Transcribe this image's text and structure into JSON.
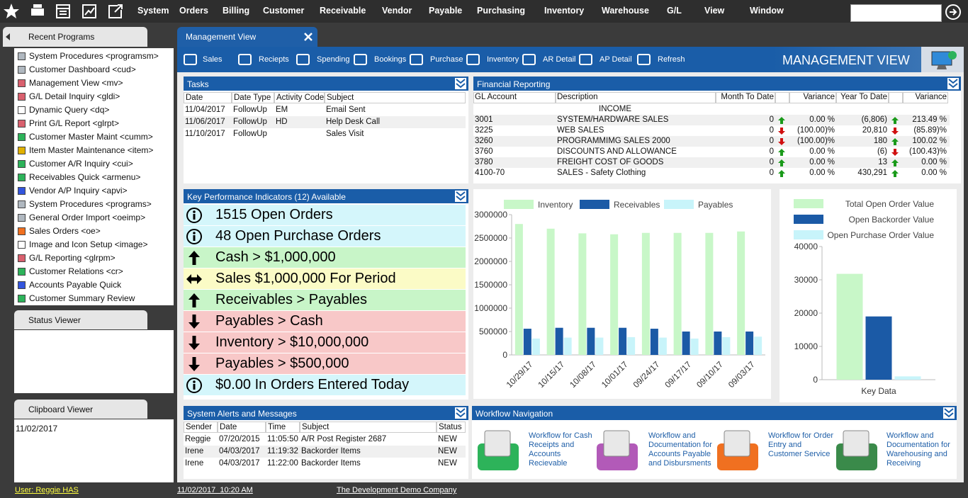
{
  "menu": {
    "items": [
      "System",
      "Orders",
      "Billing",
      "Customer",
      "Receivable",
      "Vendor",
      "Payable",
      "Purchasing",
      "Inventory",
      "Warehouse",
      "G/L",
      "View",
      "Window"
    ]
  },
  "recent_programs": {
    "title": "Recent Programs",
    "items": [
      {
        "label": "System Procedures <programsm>",
        "color": "#b0b8c0"
      },
      {
        "label": "Customer Dashboard <cud>",
        "color": "#b0b8c0"
      },
      {
        "label": "Management View <mv>",
        "color": "#d9606e"
      },
      {
        "label": "G/L Detail Inquiry <gldi>",
        "color": "#d9606e"
      },
      {
        "label": "Dynamic Query <dq>",
        "color": "#ffffff"
      },
      {
        "label": "Print G/L Report <glrpt>",
        "color": "#d9606e"
      },
      {
        "label": "Customer Master Maint <cumm>",
        "color": "#2db35a"
      },
      {
        "label": "Item Master Maintenance <item>",
        "color": "#e0b000"
      },
      {
        "label": "Customer A/R Inquiry <cui>",
        "color": "#2db35a"
      },
      {
        "label": "Receivables Quick <armenu>",
        "color": "#2db35a"
      },
      {
        "label": "Vendor A/P Inquiry <apvi>",
        "color": "#3355dd"
      },
      {
        "label": "System Procedures <programs>",
        "color": "#b0b8c0"
      },
      {
        "label": "General Order Import <oeimp>",
        "color": "#b0b8c0"
      },
      {
        "label": "Sales Orders <oe>",
        "color": "#f07020"
      },
      {
        "label": "Image and Icon Setup <image>",
        "color": "#ffffff"
      },
      {
        "label": "G/L Reporting <glrpm>",
        "color": "#d9606e"
      },
      {
        "label": "Customer Relations <cr>",
        "color": "#2db35a"
      },
      {
        "label": "Accounts Payable Quick",
        "color": "#3355dd"
      },
      {
        "label": "Customer Summary Review",
        "color": "#2db35a"
      }
    ]
  },
  "status_viewer": {
    "title": "Status Viewer"
  },
  "clipboard_viewer": {
    "title": "Clipboard Viewer",
    "content": "11/02/2017"
  },
  "main_tab": {
    "title": "Management View"
  },
  "toolbar": {
    "buttons": [
      "Sales",
      "Reciepts",
      "Spending",
      "Bookings",
      "Purchase",
      "Inventory",
      "AR Detail",
      "AP Detail",
      "Refresh"
    ],
    "banner": "MANAGEMENT VIEW"
  },
  "tasks": {
    "title": "Tasks",
    "columns": [
      "Date",
      "Date Type",
      "Activity Code",
      "Subject"
    ],
    "rows": [
      [
        "11/04/2017",
        "FollowUp",
        "EM",
        "Email Sent"
      ],
      [
        "11/06/2017",
        "FollowUp",
        "HD",
        "Help Desk Call"
      ],
      [
        "11/10/2017",
        "FollowUp",
        null,
        "Sales Visit"
      ]
    ]
  },
  "financial_reporting": {
    "title": "Financial Reporting",
    "columns": [
      "GL Account",
      "Description",
      "Month To Date",
      "Variance",
      "Year To Date",
      "Variance"
    ],
    "section": "INCOME",
    "rows": [
      {
        "account": "3001",
        "description": "SYSTEM/HARDWARE SALES",
        "month_to_date": 0,
        "mtd_trend": "up",
        "mtd_variance": "0.00 %",
        "year_to_date": "(6,806)",
        "ytd_trend": "up",
        "ytd_variance": "213.49 %"
      },
      {
        "account": "3225",
        "description": "WEB SALES",
        "month_to_date": 0,
        "mtd_trend": "down",
        "mtd_variance": "(100.00)%",
        "year_to_date": "20,810",
        "ytd_trend": "down",
        "ytd_variance": "(85.89)%"
      },
      {
        "account": "3260",
        "description": "PROGRAMMIMG SALES 2000",
        "month_to_date": 0,
        "mtd_trend": "down",
        "mtd_variance": "(100.00)%",
        "year_to_date": "180",
        "ytd_trend": "up",
        "ytd_variance": "100.02 %"
      },
      {
        "account": "3760",
        "description": "DISCOUNTS AND ALLOWANCE",
        "month_to_date": 0,
        "mtd_trend": "up",
        "mtd_variance": "0.00 %",
        "year_to_date": "(6)",
        "ytd_trend": "down",
        "ytd_variance": "(100.43)%"
      },
      {
        "account": "3780",
        "description": "FREIGHT COST OF GOODS",
        "month_to_date": 0,
        "mtd_trend": "up",
        "mtd_variance": "0.00 %",
        "year_to_date": "13",
        "ytd_trend": "up",
        "ytd_variance": "0.00 %"
      },
      {
        "account": "4100-70",
        "description": "SALES - Safety Clothing",
        "month_to_date": 0,
        "mtd_trend": "up",
        "mtd_variance": "0.00 %",
        "year_to_date": "430,291",
        "ytd_trend": "up",
        "ytd_variance": "0.00 %"
      }
    ]
  },
  "kpi": {
    "title": "Key Performance Indicators (12) Available",
    "items": [
      {
        "icon": "info",
        "text": "1515 Open Orders",
        "color": "#d4f6fb"
      },
      {
        "icon": "info",
        "text": "48 Open Purchase Orders",
        "color": "#d4f6fb"
      },
      {
        "icon": "up",
        "text": "Cash > $1,000,000",
        "color": "#c8f5c8"
      },
      {
        "icon": "both",
        "text": "Sales $1,000,000 For Period",
        "color": "#fbfbc6"
      },
      {
        "icon": "up",
        "text": "Receivables > Payables",
        "color": "#c8f5c8"
      },
      {
        "icon": "down",
        "text": "Payables > Cash",
        "color": "#f8c8c8"
      },
      {
        "icon": "down",
        "text": "Inventory > $10,000,000",
        "color": "#f8c8c8"
      },
      {
        "icon": "down",
        "text": "Payables > $500,000",
        "color": "#f8c8c8"
      },
      {
        "icon": "info",
        "text": "$0.00 In Orders Entered Today",
        "color": "#d4f6fb"
      }
    ]
  },
  "chart_data": [
    {
      "type": "bar",
      "categories": [
        "10/29/17",
        "10/15/17",
        "10/08/17",
        "10/01/17",
        "09/24/17",
        "09/17/17",
        "09/10/17",
        "09/03/17"
      ],
      "series": [
        {
          "name": "Inventory",
          "color": "#c8f7c8",
          "values": [
            2800000,
            2700000,
            2600000,
            2580000,
            2610000,
            2610000,
            2610000,
            2640000
          ]
        },
        {
          "name": "Receivables",
          "color": "#1b5aa6",
          "values": [
            560000,
            580000,
            580000,
            580000,
            560000,
            500000,
            500000,
            500000
          ]
        },
        {
          "name": "Payables",
          "color": "#c8f4fa",
          "values": [
            350000,
            370000,
            370000,
            380000,
            370000,
            350000,
            380000,
            390000
          ]
        }
      ],
      "ylim": [
        0,
        3000000
      ],
      "yticks": [
        0,
        500000,
        1000000,
        1500000,
        2000000,
        2500000,
        3000000
      ],
      "grid": false,
      "legend": "top"
    },
    {
      "type": "bar",
      "categories": [
        "Key Data"
      ],
      "series": [
        {
          "name": "Total Open Order Value",
          "color": "#c8f7c8",
          "values": [
            31800
          ]
        },
        {
          "name": "Open Backorder Value",
          "color": "#1b5aa6",
          "values": [
            19000
          ]
        },
        {
          "name": "Open Purchase Order Value",
          "color": "#c8f4fa",
          "values": [
            1000
          ]
        }
      ],
      "ylim": [
        0,
        40000
      ],
      "yticks": [
        0,
        10000,
        20000,
        30000,
        40000
      ],
      "grid": false,
      "legend": "top-right"
    }
  ],
  "system_alerts": {
    "title": "System Alerts and Messages",
    "columns": [
      "Sender",
      "Date",
      "Time",
      "Subject",
      "Status"
    ],
    "rows": [
      [
        "Reggie",
        "07/20/2015",
        "11:05:50",
        "A/R Post Register 2687",
        "NEW"
      ],
      [
        "Irene",
        "04/03/2017",
        "11:19:32",
        "Backorder Items",
        "NEW"
      ],
      [
        "Irene",
        "04/03/2017",
        "11:22:00",
        "Backorder Items",
        "NEW"
      ]
    ]
  },
  "workflow_navigation": {
    "title": "Workflow Navigation",
    "items": [
      "Workflow for Cash Receipts and Accounts Recievable",
      "Workflow and Documentation for Accounts Payable and Disbursments",
      "Workflow for Order Entry and Customer Service",
      "Workflow and Documentation for Warehousing and Receiving"
    ]
  },
  "status_bar": {
    "user": "User: Reggie HAS",
    "datetime": "11/02/2017  10:20 AM",
    "company": "The Development Demo Company"
  }
}
